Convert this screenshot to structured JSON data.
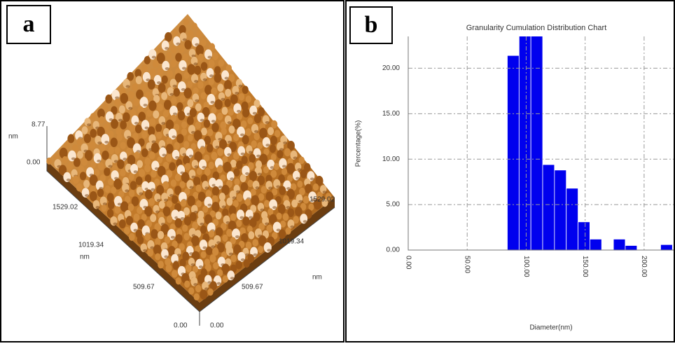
{
  "panel_labels": [
    "a",
    "b"
  ],
  "afm_image": {
    "labels": [
      "8.77",
      "nm",
      "0.00",
      "1529.02",
      "1019.34",
      "nm",
      "509.67",
      "0.00",
      "0.00",
      "509.67",
      "1019.34",
      "1529.02",
      "nm"
    ]
  },
  "chart_data": {
    "type": "histogram",
    "title": "Granularity Cumulation Distribution  Chart",
    "x_label": "Diameter(nm)",
    "y_label": "Percentage(%)",
    "bins": [
      84,
      94,
      104,
      114,
      124,
      134,
      144,
      154,
      164,
      174,
      184,
      194,
      204,
      214,
      224
    ],
    "values": [
      21.4,
      24,
      24,
      9.4,
      8.8,
      6.8,
      3.1,
      1.2,
      0,
      1.2,
      0.5,
      0,
      0,
      0.6
    ],
    "color": "#0000ee",
    "xlim": [
      0,
      225
    ],
    "ylim": [
      0,
      23.5
    ],
    "xticks": [
      {
        "value": 0,
        "label": "0.00"
      },
      {
        "value": 50,
        "label": "50.00"
      },
      {
        "value": 100,
        "label": "100.00"
      },
      {
        "value": 150,
        "label": "150.00"
      },
      {
        "value": 200,
        "label": "200.00"
      }
    ],
    "yticks": [
      {
        "value": 0,
        "label": "0.00"
      },
      {
        "value": 5,
        "label": "5.00"
      },
      {
        "value": 10,
        "label": "10.00"
      },
      {
        "value": 15,
        "label": "15.00"
      },
      {
        "value": 20,
        "label": "20.00"
      }
    ],
    "grid": true
  }
}
